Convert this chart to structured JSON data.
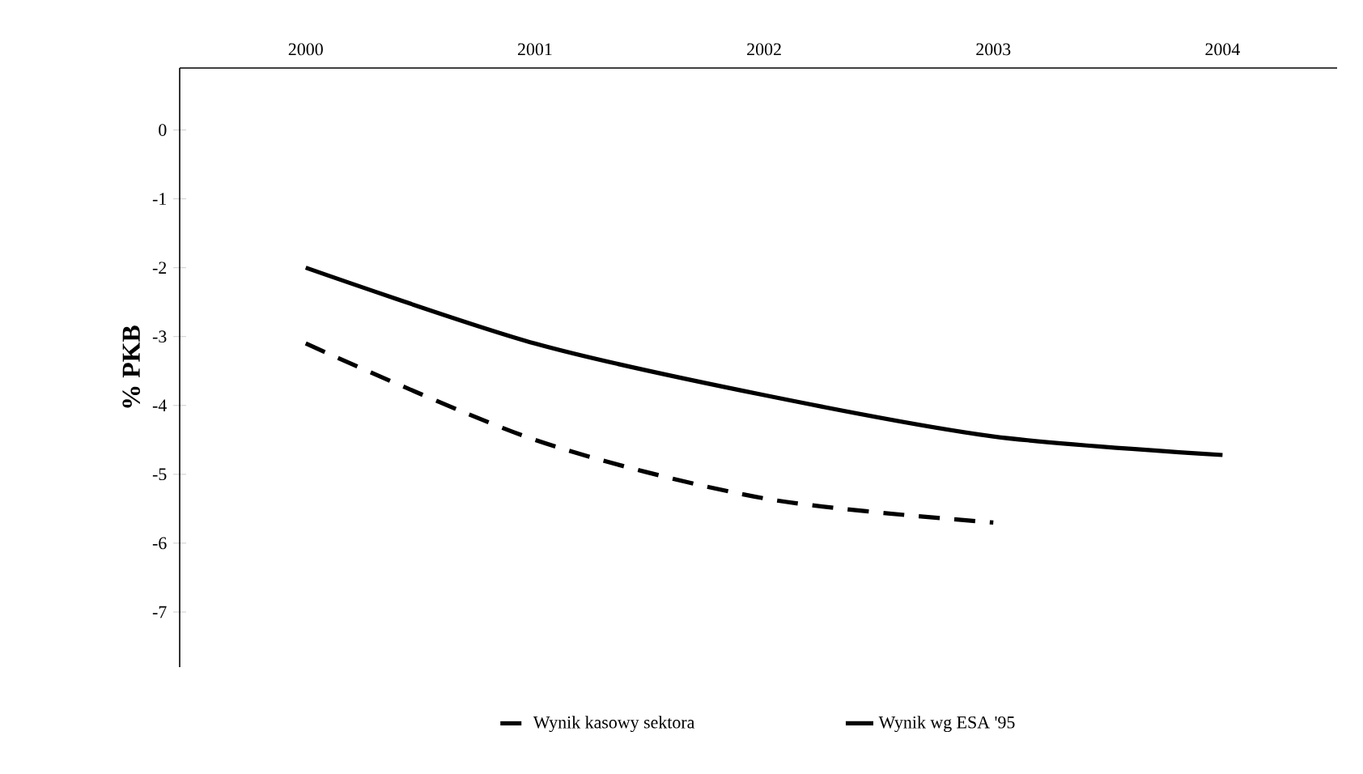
{
  "chart_data": {
    "type": "line",
    "ylabel": "% PKB",
    "categories": [
      "2000",
      "2001",
      "2002",
      "2003",
      "2004"
    ],
    "series": [
      {
        "name": "Wynik kasowy sektora",
        "color": "#000000",
        "line_style": "dashed",
        "values": [
          -3.1,
          -4.5,
          -5.35,
          -5.7,
          null
        ]
      },
      {
        "name": "Wynik wg ESA '95",
        "color": "#000000",
        "line_style": "solid",
        "values": [
          -2.0,
          -3.1,
          -3.85,
          -4.45,
          -4.72
        ]
      }
    ],
    "ylim": [
      -7.8,
      0.9
    ],
    "yticks": [
      0,
      -1,
      -2,
      -3,
      -4,
      -5,
      -6,
      -7
    ],
    "legend": "bottom",
    "marker": "none"
  }
}
